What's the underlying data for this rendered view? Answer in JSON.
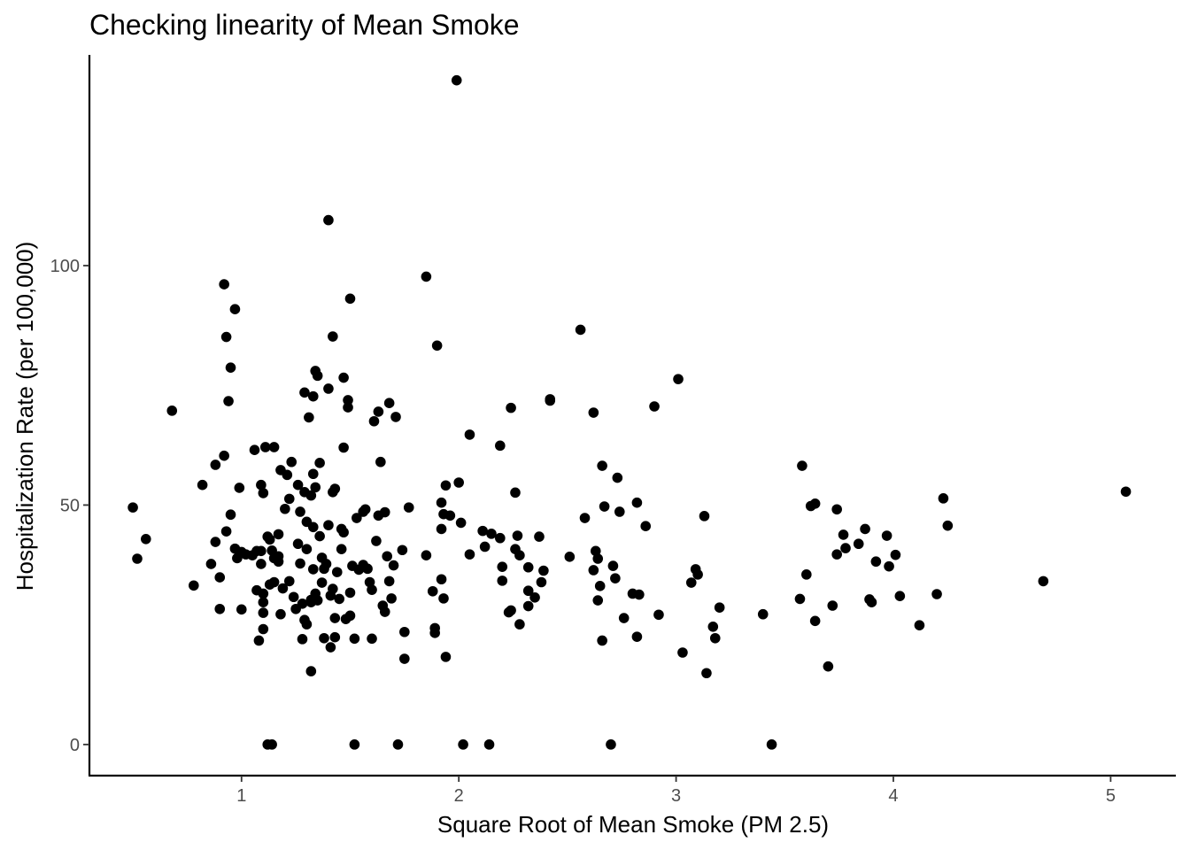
{
  "chart_data": {
    "type": "scatter",
    "title": "Checking linearity of Mean Smoke",
    "xlabel": "Square Root of Mean Smoke (PM 2.5)",
    "ylabel": "Hospitalization Rate (per 100,000)",
    "xlim": [
      0.3,
      5.3
    ],
    "ylim": [
      -6.5,
      144
    ],
    "xticks": [
      1,
      2,
      3,
      4,
      5
    ],
    "yticks": [
      0,
      50,
      100
    ],
    "grid": false,
    "point_color": "#000000",
    "points": [
      [
        0.5,
        49.5
      ],
      [
        0.52,
        38.8
      ],
      [
        0.56,
        42.9
      ],
      [
        0.68,
        69.7
      ],
      [
        0.78,
        33.2
      ],
      [
        0.82,
        54.2
      ],
      [
        0.86,
        37.7
      ],
      [
        0.88,
        42.3
      ],
      [
        0.88,
        58.4
      ],
      [
        0.9,
        34.9
      ],
      [
        0.9,
        28.3
      ],
      [
        0.92,
        96.1
      ],
      [
        0.92,
        60.3
      ],
      [
        0.93,
        85.1
      ],
      [
        0.94,
        71.7
      ],
      [
        0.93,
        44.5
      ],
      [
        0.95,
        78.7
      ],
      [
        0.95,
        48
      ],
      [
        0.97,
        90.9
      ],
      [
        0.97,
        40.9
      ],
      [
        0.98,
        38.9
      ],
      [
        0.99,
        53.6
      ],
      [
        1,
        40.2
      ],
      [
        1,
        28.2
      ],
      [
        1.02,
        39.7
      ],
      [
        1.05,
        39.5
      ],
      [
        1.06,
        61.5
      ],
      [
        1.07,
        32.2
      ],
      [
        1.07,
        40.4
      ],
      [
        1.08,
        21.7
      ],
      [
        1.09,
        54.2
      ],
      [
        1.09,
        37.7
      ],
      [
        1.09,
        40.4
      ],
      [
        1.1,
        31.5
      ],
      [
        1.1,
        52.5
      ],
      [
        1.1,
        29.7
      ],
      [
        1.1,
        24.1
      ],
      [
        1.1,
        27.5
      ],
      [
        1.11,
        62.1
      ],
      [
        1.12,
        43.4
      ],
      [
        1.12,
        0
      ],
      [
        1.13,
        33.4
      ],
      [
        1.13,
        42.8
      ],
      [
        1.14,
        40.5
      ],
      [
        1.14,
        0
      ],
      [
        1.15,
        62.1
      ],
      [
        1.15,
        38.9
      ],
      [
        1.15,
        33.9
      ],
      [
        1.17,
        43.9
      ],
      [
        1.17,
        39.3
      ],
      [
        1.17,
        38.2
      ],
      [
        1.18,
        27.2
      ],
      [
        1.18,
        57.3
      ],
      [
        1.19,
        32.6
      ],
      [
        1.2,
        49.2
      ],
      [
        1.21,
        56.3
      ],
      [
        1.22,
        34.1
      ],
      [
        1.22,
        51.3
      ],
      [
        1.23,
        59
      ],
      [
        1.24,
        30.8
      ],
      [
        1.25,
        28.3
      ],
      [
        1.26,
        54.2
      ],
      [
        1.26,
        41.9
      ],
      [
        1.27,
        48.6
      ],
      [
        1.27,
        37.8
      ],
      [
        1.28,
        22
      ],
      [
        1.28,
        29.4
      ],
      [
        1.29,
        73.5
      ],
      [
        1.29,
        26
      ],
      [
        1.29,
        52.7
      ],
      [
        1.3,
        46.5
      ],
      [
        1.3,
        40.8
      ],
      [
        1.3,
        25.1
      ],
      [
        1.31,
        68.3
      ],
      [
        1.32,
        29.7
      ],
      [
        1.32,
        30.2
      ],
      [
        1.32,
        15.3
      ],
      [
        1.32,
        52
      ],
      [
        1.33,
        36.6
      ],
      [
        1.33,
        56.5
      ],
      [
        1.33,
        72.7
      ],
      [
        1.33,
        45.4
      ],
      [
        1.34,
        31.5
      ],
      [
        1.34,
        53.7
      ],
      [
        1.34,
        78
      ],
      [
        1.35,
        77
      ],
      [
        1.35,
        30.1
      ],
      [
        1.36,
        43.5
      ],
      [
        1.36,
        58.8
      ],
      [
        1.37,
        39
      ],
      [
        1.37,
        33.8
      ],
      [
        1.38,
        22.2
      ],
      [
        1.38,
        36.7
      ],
      [
        1.39,
        37.7
      ],
      [
        1.4,
        45.8
      ],
      [
        1.4,
        74.3
      ],
      [
        1.4,
        109.5
      ],
      [
        1.41,
        31.1
      ],
      [
        1.41,
        20.3
      ],
      [
        1.42,
        85.2
      ],
      [
        1.42,
        52.7
      ],
      [
        1.42,
        32.5
      ],
      [
        1.43,
        53.4
      ],
      [
        1.43,
        26.4
      ],
      [
        1.43,
        22.4
      ],
      [
        1.44,
        36
      ],
      [
        1.45,
        30.4
      ],
      [
        1.46,
        45
      ],
      [
        1.46,
        40.8
      ],
      [
        1.47,
        62
      ],
      [
        1.47,
        76.6
      ],
      [
        1.47,
        44.3
      ],
      [
        1.48,
        26.2
      ],
      [
        1.49,
        70.4
      ],
      [
        1.49,
        71.9
      ],
      [
        1.5,
        31.7
      ],
      [
        1.5,
        26.9
      ],
      [
        1.5,
        93.1
      ],
      [
        1.51,
        37.3
      ],
      [
        1.52,
        22.1
      ],
      [
        1.52,
        0
      ],
      [
        1.53,
        47.3
      ],
      [
        1.54,
        36.5
      ],
      [
        1.56,
        37.5
      ],
      [
        1.56,
        48.6
      ],
      [
        1.57,
        49.1
      ],
      [
        1.58,
        36.7
      ],
      [
        1.59,
        33.9
      ],
      [
        1.6,
        32.3
      ],
      [
        1.6,
        22.1
      ],
      [
        1.61,
        67.5
      ],
      [
        1.62,
        42.5
      ],
      [
        1.63,
        47.8
      ],
      [
        1.63,
        69.5
      ],
      [
        1.64,
        59
      ],
      [
        1.65,
        29
      ],
      [
        1.66,
        27.7
      ],
      [
        1.66,
        48.5
      ],
      [
        1.67,
        39.3
      ],
      [
        1.68,
        71.3
      ],
      [
        1.68,
        34.1
      ],
      [
        1.69,
        30.5
      ],
      [
        1.7,
        37.4
      ],
      [
        1.71,
        68.4
      ],
      [
        1.72,
        0
      ],
      [
        1.74,
        40.6
      ],
      [
        1.75,
        23.5
      ],
      [
        1.75,
        17.9
      ],
      [
        1.77,
        49.5
      ],
      [
        1.85,
        97.7
      ],
      [
        1.85,
        39.5
      ],
      [
        1.88,
        32
      ],
      [
        1.89,
        24.3
      ],
      [
        1.89,
        23.3
      ],
      [
        1.9,
        83.3
      ],
      [
        1.92,
        34.5
      ],
      [
        1.92,
        45
      ],
      [
        1.92,
        50.5
      ],
      [
        1.93,
        48.1
      ],
      [
        1.93,
        30.5
      ],
      [
        1.94,
        18.3
      ],
      [
        1.94,
        54.1
      ],
      [
        1.96,
        47.8
      ],
      [
        1.99,
        138.7
      ],
      [
        2,
        54.7
      ],
      [
        2.01,
        46.3
      ],
      [
        2.02,
        0
      ],
      [
        2.05,
        64.7
      ],
      [
        2.05,
        39.7
      ],
      [
        2.11,
        44.6
      ],
      [
        2.12,
        41.3
      ],
      [
        2.14,
        0
      ],
      [
        2.15,
        44
      ],
      [
        2.19,
        62.4
      ],
      [
        2.19,
        43.1
      ],
      [
        2.2,
        37.1
      ],
      [
        2.2,
        34.2
      ],
      [
        2.23,
        27.6
      ],
      [
        2.24,
        70.3
      ],
      [
        2.24,
        28
      ],
      [
        2.26,
        52.6
      ],
      [
        2.26,
        40.8
      ],
      [
        2.27,
        43.6
      ],
      [
        2.28,
        25.1
      ],
      [
        2.28,
        39.5
      ],
      [
        2.32,
        37
      ],
      [
        2.32,
        32.1
      ],
      [
        2.32,
        28.9
      ],
      [
        2.35,
        30.7
      ],
      [
        2.37,
        43.4
      ],
      [
        2.38,
        33.9
      ],
      [
        2.39,
        36.3
      ],
      [
        2.42,
        72.1
      ],
      [
        2.42,
        71.8
      ],
      [
        2.51,
        39.2
      ],
      [
        2.56,
        86.6
      ],
      [
        2.58,
        47.3
      ],
      [
        2.62,
        69.3
      ],
      [
        2.62,
        36.4
      ],
      [
        2.63,
        40.4
      ],
      [
        2.64,
        38.8
      ],
      [
        2.64,
        30.1
      ],
      [
        2.65,
        33.1
      ],
      [
        2.66,
        58.2
      ],
      [
        2.66,
        21.7
      ],
      [
        2.67,
        49.7
      ],
      [
        2.7,
        0
      ],
      [
        2.71,
        37.3
      ],
      [
        2.72,
        34.7
      ],
      [
        2.73,
        55.7
      ],
      [
        2.74,
        48.6
      ],
      [
        2.76,
        26.4
      ],
      [
        2.8,
        31.5
      ],
      [
        2.82,
        50.5
      ],
      [
        2.82,
        22.5
      ],
      [
        2.83,
        31.3
      ],
      [
        2.86,
        45.6
      ],
      [
        2.9,
        70.6
      ],
      [
        2.92,
        27.1
      ],
      [
        3.01,
        76.3
      ],
      [
        3.03,
        19.2
      ],
      [
        3.07,
        33.8
      ],
      [
        3.09,
        36.6
      ],
      [
        3.1,
        35.5
      ],
      [
        3.13,
        47.7
      ],
      [
        3.14,
        14.9
      ],
      [
        3.17,
        24.6
      ],
      [
        3.18,
        22.2
      ],
      [
        3.2,
        28.6
      ],
      [
        3.4,
        27.2
      ],
      [
        3.44,
        0
      ],
      [
        3.57,
        30.4
      ],
      [
        3.58,
        58.2
      ],
      [
        3.6,
        35.5
      ],
      [
        3.62,
        49.8
      ],
      [
        3.64,
        50.3
      ],
      [
        3.64,
        25.8
      ],
      [
        3.7,
        16.3
      ],
      [
        3.72,
        29
      ],
      [
        3.74,
        49.1
      ],
      [
        3.74,
        39.7
      ],
      [
        3.77,
        43.8
      ],
      [
        3.78,
        41
      ],
      [
        3.84,
        41.9
      ],
      [
        3.87,
        45
      ],
      [
        3.89,
        30.3
      ],
      [
        3.9,
        29.7
      ],
      [
        3.92,
        38.2
      ],
      [
        3.97,
        43.6
      ],
      [
        3.98,
        37.2
      ],
      [
        4.01,
        39.6
      ],
      [
        4.03,
        31
      ],
      [
        4.12,
        24.9
      ],
      [
        4.2,
        31.4
      ],
      [
        4.23,
        51.4
      ],
      [
        4.25,
        45.7
      ],
      [
        4.69,
        34.1
      ],
      [
        5.07,
        52.8
      ]
    ]
  }
}
